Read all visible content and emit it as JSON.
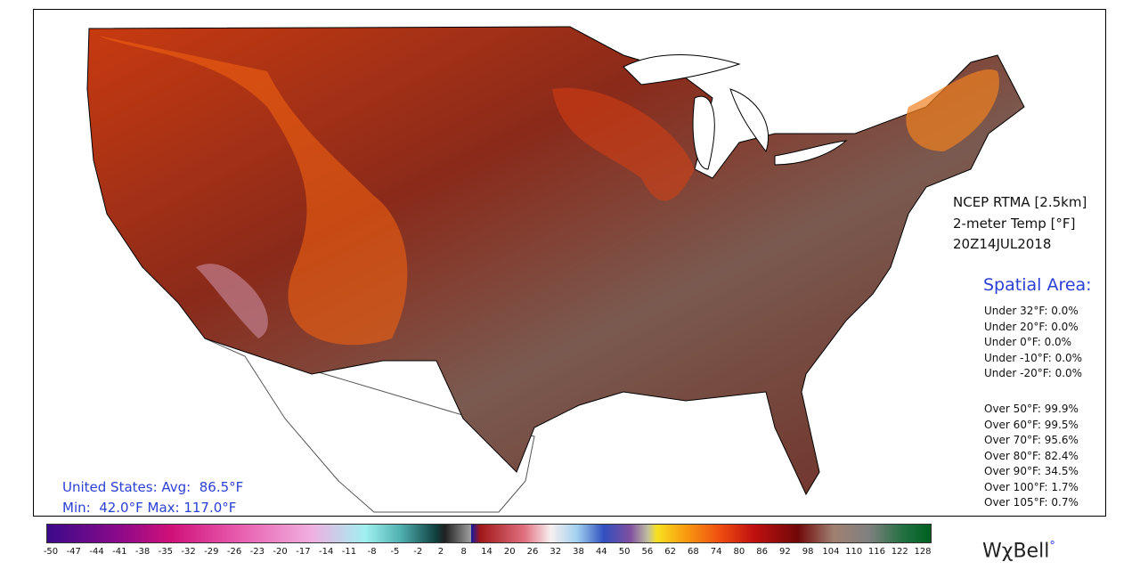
{
  "header": {
    "source": "NCEP RTMA [2.5km]",
    "variable": "2-meter Temp [°F]",
    "valid_time": "20Z14JUL2018"
  },
  "spatial_area": {
    "title": "Spatial Area:",
    "under": [
      "Under 32°F: 0.0%",
      "Under 20°F: 0.0%",
      "Under 0°F: 0.0%",
      "Under -10°F: 0.0%",
      "Under -20°F: 0.0%"
    ],
    "over": [
      "Over 50°F: 99.9%",
      "Over 60°F: 99.5%",
      "Over 70°F: 95.6%",
      "Over 80°F: 82.4%",
      "Over 90°F: 34.5%",
      "Over 100°F: 1.7%",
      "Over 105°F: 0.7%"
    ]
  },
  "summary": {
    "average": "United States: Avg:  86.5°F",
    "range": "Min:  42.0°F Max: 117.0°F"
  },
  "colorbar": {
    "ticks": [
      -50,
      -47,
      -44,
      -41,
      -38,
      -35,
      -32,
      -29,
      -26,
      -23,
      -20,
      -17,
      -14,
      -11,
      -8,
      -5,
      -2,
      2,
      8,
      14,
      20,
      26,
      32,
      38,
      44,
      50,
      56,
      62,
      68,
      74,
      80,
      86,
      92,
      98,
      104,
      110,
      116,
      122,
      128
    ]
  },
  "logo": "WχBell"
}
